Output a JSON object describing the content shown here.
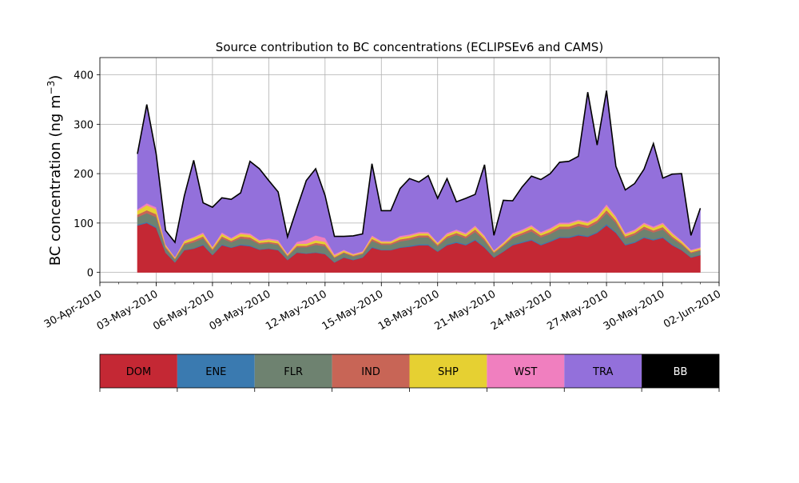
{
  "chart_data": {
    "type": "area",
    "title": "Source contribution to BC concentrations (ECLIPSEv6 and CAMS)",
    "ylabel": "BC concentration (ng m",
    "ylabel_sup": "−3",
    "ylabel_close": ")",
    "xlabel": "",
    "ylim": [
      -20,
      435
    ],
    "yticks": [
      0,
      100,
      200,
      300,
      400
    ],
    "xlim": [
      "2010-04-30",
      "2010-06-02"
    ],
    "x_tick_labels": [
      "30-Apr-2010",
      "03-May-2010",
      "06-May-2010",
      "09-May-2010",
      "12-May-2010",
      "15-May-2010",
      "18-May-2010",
      "21-May-2010",
      "24-May-2010",
      "27-May-2010",
      "30-May-2010",
      "02-Jun-2010"
    ],
    "x_tick_dates": [
      "2010-04-30",
      "2010-05-03",
      "2010-05-06",
      "2010-05-09",
      "2010-05-12",
      "2010-05-15",
      "2010-05-18",
      "2010-05-21",
      "2010-05-24",
      "2010-05-27",
      "2010-05-30",
      "2010-06-02"
    ],
    "grid": true,
    "legend_position": "below",
    "series_order": [
      "DOM",
      "ENE",
      "FLR",
      "IND",
      "SHP",
      "WST",
      "TRA"
    ],
    "legend": [
      {
        "name": "DOM",
        "color": "#c42834",
        "text_color": "#000000"
      },
      {
        "name": "ENE",
        "color": "#3a7ab0",
        "text_color": "#000000"
      },
      {
        "name": "FLR",
        "color": "#6e8270",
        "text_color": "#000000"
      },
      {
        "name": "IND",
        "color": "#c86556",
        "text_color": "#000000"
      },
      {
        "name": "SHP",
        "color": "#e6d032",
        "text_color": "#000000"
      },
      {
        "name": "WST",
        "color": "#f07fbf",
        "text_color": "#000000"
      },
      {
        "name": "TRA",
        "color": "#9370db",
        "text_color": "#000000"
      },
      {
        "name": "BB",
        "color": "#000000",
        "text_color": "#ffffff"
      }
    ],
    "x": [
      "2010-05-02 00:00",
      "2010-05-02 12:00",
      "2010-05-03 00:00",
      "2010-05-03 12:00",
      "2010-05-04 00:00",
      "2010-05-04 12:00",
      "2010-05-05 00:00",
      "2010-05-05 12:00",
      "2010-05-06 00:00",
      "2010-05-06 12:00",
      "2010-05-07 00:00",
      "2010-05-07 12:00",
      "2010-05-08 00:00",
      "2010-05-08 12:00",
      "2010-05-09 00:00",
      "2010-05-09 12:00",
      "2010-05-10 00:00",
      "2010-05-10 12:00",
      "2010-05-11 00:00",
      "2010-05-11 12:00",
      "2010-05-12 00:00",
      "2010-05-12 12:00",
      "2010-05-13 00:00",
      "2010-05-13 12:00",
      "2010-05-14 00:00",
      "2010-05-14 12:00",
      "2010-05-15 00:00",
      "2010-05-15 12:00",
      "2010-05-16 00:00",
      "2010-05-16 12:00",
      "2010-05-17 00:00",
      "2010-05-17 12:00",
      "2010-05-18 00:00",
      "2010-05-18 12:00",
      "2010-05-19 00:00",
      "2010-05-19 12:00",
      "2010-05-20 00:00",
      "2010-05-20 12:00",
      "2010-05-21 00:00",
      "2010-05-21 12:00",
      "2010-05-22 00:00",
      "2010-05-22 12:00",
      "2010-05-23 00:00",
      "2010-05-23 12:00",
      "2010-05-24 00:00",
      "2010-05-24 12:00",
      "2010-05-25 00:00",
      "2010-05-25 12:00",
      "2010-05-26 00:00",
      "2010-05-26 12:00",
      "2010-05-27 00:00",
      "2010-05-27 12:00",
      "2010-05-28 00:00",
      "2010-05-28 12:00",
      "2010-05-29 00:00",
      "2010-05-29 12:00",
      "2010-05-30 00:00",
      "2010-05-30 12:00",
      "2010-05-31 00:00",
      "2010-05-31 12:00",
      "2010-06-01 00:00"
    ],
    "series": [
      {
        "name": "DOM",
        "values": [
          95,
          100,
          90,
          40,
          20,
          45,
          48,
          55,
          35,
          55,
          50,
          55,
          53,
          46,
          48,
          45,
          25,
          40,
          38,
          40,
          37,
          20,
          30,
          25,
          30,
          50,
          45,
          45,
          50,
          52,
          55,
          55,
          42,
          55,
          60,
          55,
          65,
          50,
          30,
          42,
          55,
          60,
          65,
          55,
          62,
          70,
          70,
          75,
          72,
          80,
          95,
          80,
          55,
          60,
          70,
          65,
          70,
          55,
          45,
          30,
          35
        ]
      },
      {
        "name": "ENE",
        "values": [
          2,
          2,
          2,
          1,
          1,
          1,
          1,
          2,
          1,
          2,
          1,
          2,
          2,
          1,
          1,
          1,
          1,
          1,
          1,
          1,
          1,
          1,
          1,
          1,
          1,
          2,
          1,
          1,
          1,
          2,
          2,
          2,
          1,
          2,
          2,
          2,
          2,
          2,
          1,
          1,
          2,
          2,
          2,
          2,
          2,
          2,
          2,
          2,
          2,
          2,
          3,
          2,
          2,
          2,
          2,
          2,
          2,
          2,
          1,
          1,
          1
        ]
      },
      {
        "name": "FLR",
        "values": [
          15,
          18,
          20,
          8,
          5,
          10,
          12,
          12,
          8,
          12,
          10,
          12,
          12,
          10,
          10,
          10,
          6,
          10,
          12,
          15,
          15,
          8,
          8,
          6,
          6,
          12,
          10,
          10,
          12,
          12,
          14,
          14,
          10,
          12,
          14,
          12,
          15,
          12,
          8,
          10,
          12,
          14,
          16,
          14,
          14,
          16,
          16,
          17,
          16,
          18,
          22,
          18,
          12,
          14,
          16,
          14,
          15,
          12,
          10,
          8,
          8
        ]
      },
      {
        "name": "IND",
        "values": [
          5,
          6,
          6,
          3,
          2,
          3,
          4,
          4,
          3,
          4,
          3,
          4,
          4,
          3,
          3,
          3,
          2,
          3,
          3,
          4,
          4,
          2,
          2,
          2,
          2,
          4,
          3,
          3,
          4,
          4,
          4,
          4,
          3,
          4,
          4,
          4,
          5,
          4,
          2,
          3,
          4,
          4,
          5,
          4,
          4,
          5,
          5,
          5,
          5,
          5,
          6,
          5,
          4,
          4,
          5,
          4,
          5,
          4,
          3,
          2,
          2
        ]
      },
      {
        "name": "SHP",
        "values": [
          8,
          10,
          10,
          3,
          2,
          4,
          5,
          5,
          3,
          5,
          4,
          5,
          5,
          4,
          4,
          4,
          2,
          4,
          4,
          5,
          5,
          3,
          3,
          2,
          2,
          4,
          3,
          3,
          4,
          4,
          4,
          4,
          3,
          4,
          4,
          4,
          5,
          4,
          2,
          3,
          4,
          4,
          5,
          4,
          5,
          5,
          5,
          5,
          5,
          6,
          8,
          6,
          4,
          4,
          5,
          5,
          6,
          5,
          4,
          3,
          3
        ]
      },
      {
        "name": "WST",
        "values": [
          3,
          4,
          4,
          2,
          1,
          2,
          2,
          3,
          2,
          3,
          2,
          3,
          3,
          2,
          3,
          3,
          2,
          4,
          8,
          10,
          8,
          3,
          2,
          2,
          2,
          3,
          2,
          2,
          3,
          3,
          3,
          3,
          2,
          3,
          3,
          3,
          3,
          3,
          2,
          2,
          3,
          3,
          3,
          3,
          3,
          3,
          3,
          3,
          3,
          3,
          4,
          3,
          3,
          3,
          3,
          3,
          3,
          3,
          2,
          2,
          2
        ]
      },
      {
        "name": "TRA",
        "values": [
          112,
          200,
          108,
          28,
          30,
          90,
          155,
          60,
          80,
          70,
          78,
          80,
          146,
          144,
          117,
          97,
          34,
          68,
          120,
          135,
          86,
          36,
          27,
          36,
          35,
          145,
          61,
          61,
          96,
          113,
          101,
          114,
          89,
          110,
          56,
          70,
          63,
          143,
          30,
          85,
          65,
          86,
          99,
          106,
          110,
          122,
          124,
          128,
          262,
          144,
          230,
          101,
          87,
          93,
          108,
          168,
          90,
          118,
          135,
          29,
          79
        ]
      }
    ],
    "totals": [
      240,
      340,
      240,
      85,
      61,
      155,
      227,
      141,
      132,
      151,
      148,
      161,
      225,
      210,
      186,
      163,
      72,
      130,
      186,
      210,
      156,
      73,
      73,
      74,
      78,
      220,
      125,
      125,
      170,
      190,
      183,
      196,
      150,
      190,
      143,
      150,
      158,
      218,
      75,
      146,
      145,
      173,
      195,
      188,
      200,
      223,
      225,
      235,
      365,
      258,
      368,
      215,
      167,
      180,
      209,
      261,
      191,
      199,
      200,
      75,
      130
    ]
  }
}
